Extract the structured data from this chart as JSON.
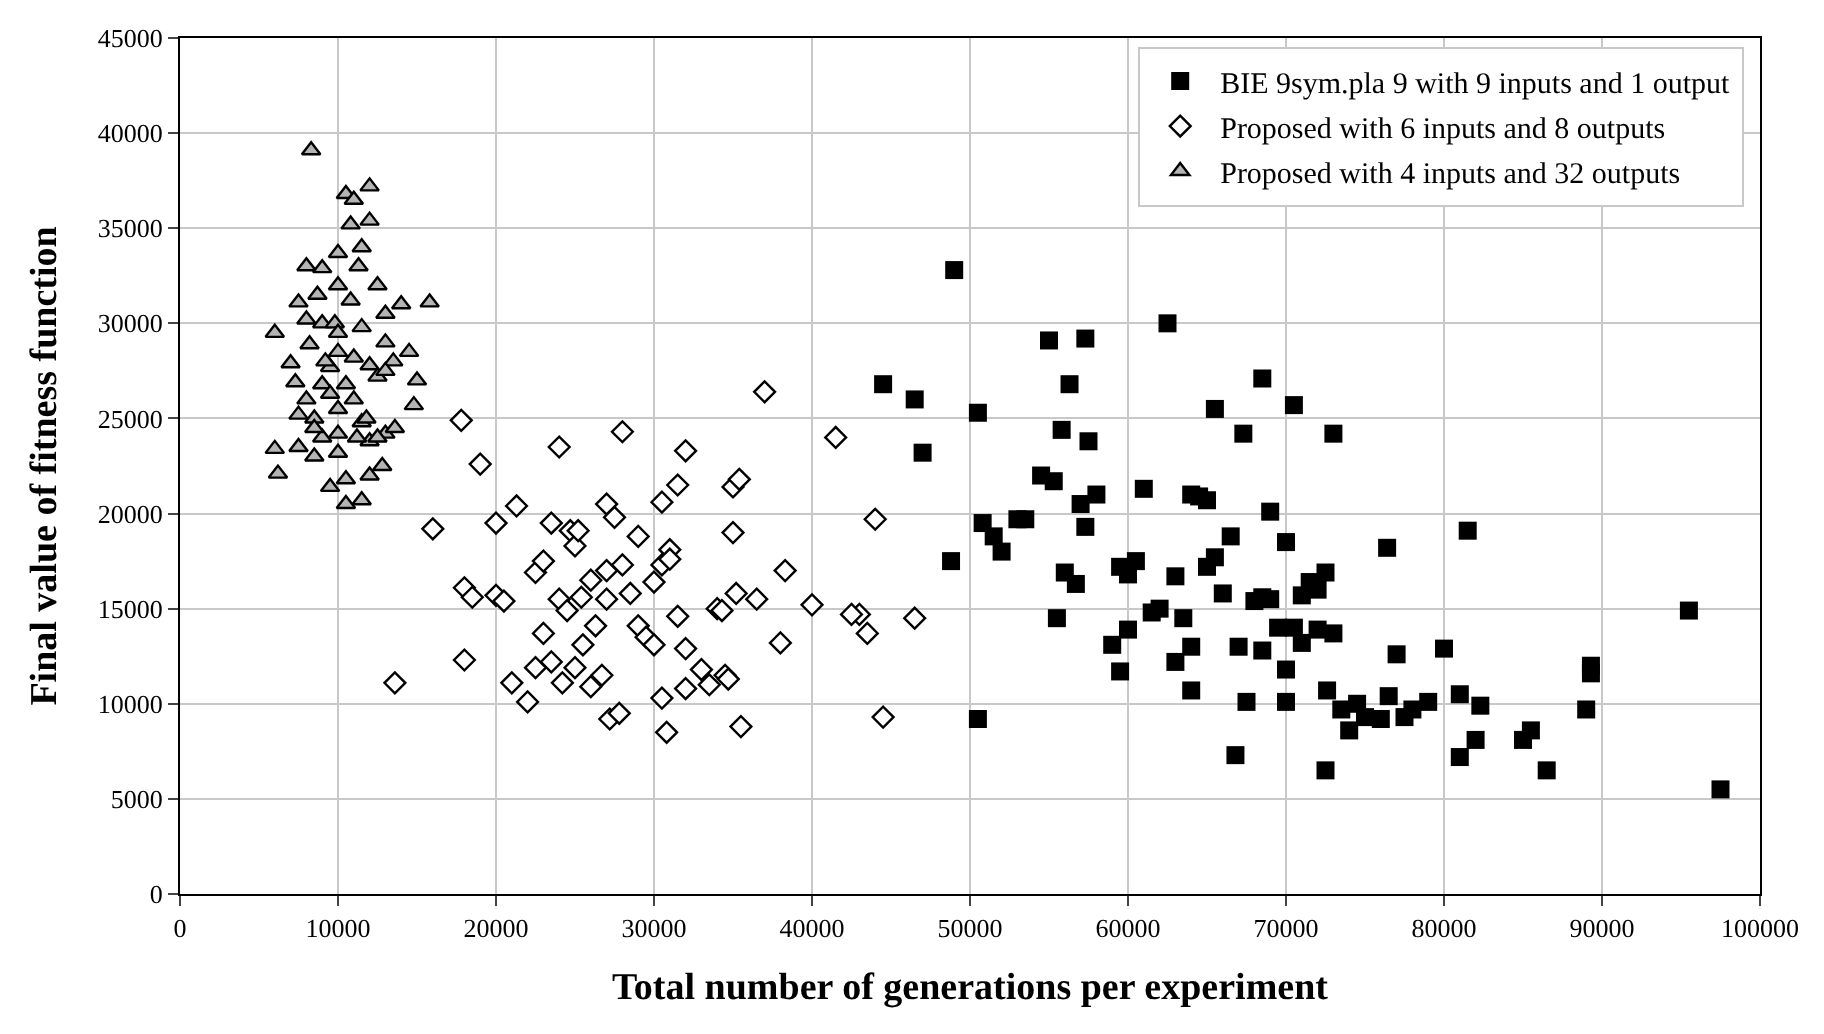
{
  "chart_data": {
    "type": "scatter",
    "xlabel": "Total number of generations per experiment",
    "ylabel": "Final value of fitness function",
    "xlim": [
      0,
      100000
    ],
    "xticks": [
      0,
      10000,
      20000,
      30000,
      40000,
      50000,
      60000,
      70000,
      80000,
      90000,
      100000
    ],
    "ylim": [
      0,
      45000
    ],
    "yticks": [
      0,
      5000,
      10000,
      15000,
      20000,
      25000,
      30000,
      35000,
      40000,
      45000
    ],
    "grid": true,
    "legend": "top right",
    "series": [
      {
        "name": "BIE 9sym.pla 9 with 9 inputs and 1 output",
        "color": "#000000",
        "marker": "square",
        "x": [
          49000,
          44500,
          46500,
          47000,
          48800,
          50500,
          50800,
          51500,
          52000,
          53000,
          53500,
          54500,
          55000,
          55300,
          55800,
          55500,
          56000,
          56300,
          56700,
          57000,
          57300,
          57300,
          57500,
          58000,
          59000,
          59500,
          59500,
          60000,
          60000,
          60500,
          61000,
          61500,
          62000,
          62500,
          63000,
          63000,
          63500,
          64000,
          64000,
          64000,
          64500,
          65000,
          65000,
          65500,
          65500,
          66000,
          66500,
          66800,
          67000,
          67300,
          67500,
          68000,
          68500,
          68500,
          68500,
          69000,
          69000,
          69500,
          70000,
          70000,
          70000,
          70500,
          70500,
          71000,
          71000,
          71500,
          72000,
          72000,
          72500,
          72500,
          72600,
          73000,
          73000,
          73500,
          74000,
          74500,
          75000,
          76000,
          76400,
          77000,
          76500,
          77500,
          78000,
          79000,
          80000,
          81000,
          81000,
          81500,
          82000,
          82300,
          85000,
          85500,
          86500,
          89300,
          89300,
          89000,
          95500,
          97500,
          50500
        ],
        "values": [
          32800,
          26800,
          26000,
          23200,
          17500,
          25300,
          19500,
          18800,
          18000,
          19700,
          19700,
          22000,
          29100,
          21700,
          24400,
          14500,
          16900,
          26800,
          16300,
          20500,
          19300,
          29200,
          23800,
          21000,
          13100,
          11700,
          17200,
          16800,
          13900,
          17500,
          21300,
          14800,
          15000,
          30000,
          12200,
          16700,
          14500,
          10700,
          21000,
          13000,
          20900,
          20700,
          17200,
          25500,
          17700,
          15800,
          18800,
          7300,
          13000,
          24200,
          10100,
          15400,
          15600,
          27100,
          12800,
          15500,
          20100,
          14000,
          11800,
          10100,
          18500,
          25700,
          14000,
          13200,
          15700,
          16400,
          16000,
          13900,
          6500,
          16900,
          10700,
          24200,
          13700,
          9700,
          8600,
          10000,
          9300,
          9200,
          18200,
          12600,
          10400,
          9300,
          9700,
          10100,
          12900,
          7200,
          10500,
          19100,
          8100,
          9900,
          8100,
          8600,
          6500,
          12000,
          11600,
          9700,
          14900,
          5500,
          9200
        ]
      },
      {
        "name": "Proposed with 6 inputs and 8 outputs",
        "color": "#ffffff",
        "marker": "diamond",
        "x": [
          13600,
          17800,
          18000,
          18000,
          18500,
          19000,
          16000,
          20000,
          20000,
          20500,
          21000,
          21300,
          22000,
          22500,
          22500,
          23000,
          23000,
          23500,
          23500,
          24000,
          24000,
          24200,
          24500,
          24700,
          25000,
          25000,
          25200,
          25400,
          25500,
          26000,
          26000,
          26300,
          26700,
          27000,
          27000,
          27000,
          27200,
          27500,
          27800,
          28000,
          28000,
          28500,
          29000,
          29000,
          29500,
          30000,
          30000,
          30500,
          30500,
          30500,
          30800,
          31000,
          31000,
          31500,
          31500,
          32000,
          32000,
          32000,
          33000,
          33500,
          34000,
          34300,
          34500,
          34700,
          35000,
          35000,
          35200,
          35400,
          35500,
          36500,
          37000,
          38000,
          38300,
          40000,
          41500,
          43000,
          43500,
          44000,
          44500,
          46500,
          42500
        ],
        "values": [
          11100,
          24900,
          12300,
          16100,
          15600,
          22600,
          19200,
          15700,
          19500,
          15400,
          11100,
          20400,
          10100,
          16900,
          11900,
          17500,
          13700,
          12200,
          19500,
          15500,
          23500,
          11100,
          14900,
          19100,
          18300,
          11900,
          19100,
          15600,
          13100,
          10900,
          16500,
          14100,
          11500,
          17000,
          20500,
          15500,
          9200,
          19800,
          9500,
          24300,
          17300,
          15800,
          14100,
          18800,
          13500,
          16400,
          13100,
          10300,
          20600,
          17300,
          8500,
          18100,
          17600,
          14600,
          21500,
          12900,
          23300,
          10800,
          11800,
          11000,
          15000,
          14900,
          11500,
          11300,
          19000,
          21400,
          15800,
          21800,
          8800,
          15500,
          26400,
          13200,
          17000,
          15200,
          24000,
          14700,
          13700,
          19700,
          9300,
          14500,
          14700
        ]
      },
      {
        "name": "Proposed with 4 inputs and 32 outputs",
        "color": "#b4b4b4",
        "marker": "triangle",
        "x": [
          8300,
          10500,
          11000,
          12000,
          10800,
          12000,
          11500,
          10000,
          9000,
          8000,
          11300,
          10000,
          7500,
          10800,
          12500,
          13000,
          14000,
          15800,
          9000,
          8000,
          9800,
          11500,
          13000,
          10000,
          6000,
          8200,
          10000,
          7300,
          11000,
          12000,
          13500,
          14500,
          15000,
          9000,
          8000,
          12500,
          13000,
          7500,
          8500,
          10000,
          11500,
          9000,
          6000,
          6200,
          8500,
          10000,
          12000,
          13000,
          7500,
          10500,
          12000,
          11500,
          10500,
          9500,
          11200,
          13600,
          14800,
          9500,
          11000,
          8500,
          11800,
          10000,
          12500,
          8700,
          9200,
          10500,
          7000,
          9500,
          12800
        ],
        "values": [
          39100,
          36800,
          36500,
          37200,
          35200,
          35400,
          34000,
          33700,
          32900,
          33000,
          33000,
          32000,
          31100,
          31200,
          32000,
          30500,
          31000,
          31100,
          30000,
          30200,
          30000,
          29800,
          29000,
          29500,
          29500,
          28900,
          28500,
          26900,
          28200,
          27800,
          28000,
          28500,
          27000,
          26800,
          26000,
          27200,
          27500,
          25200,
          25000,
          25500,
          24800,
          24000,
          23400,
          22100,
          23000,
          23200,
          23800,
          24200,
          23500,
          21800,
          22000,
          20700,
          20500,
          21400,
          24000,
          24500,
          25700,
          27700,
          26000,
          24500,
          25000,
          24200,
          24000,
          31500,
          28000,
          26800,
          27900,
          26300,
          22500
        ]
      }
    ]
  }
}
